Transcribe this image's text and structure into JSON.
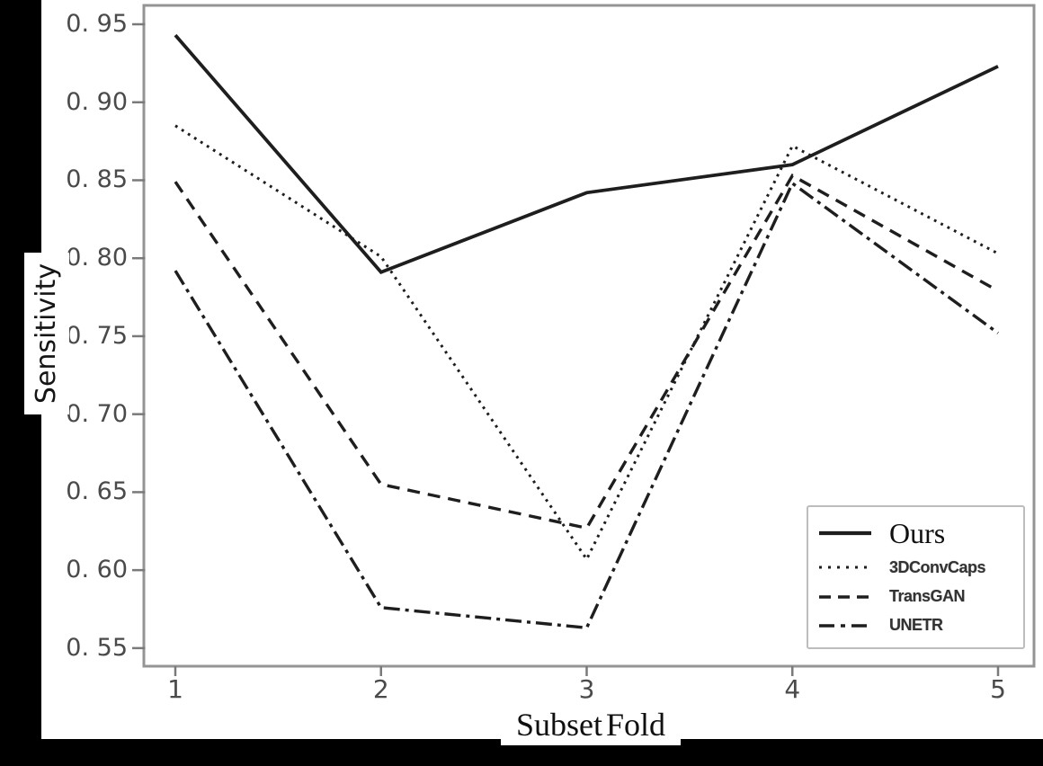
{
  "figure_background": "#ffffff",
  "scan_border_color": "#000000",
  "axis_color": "#949494",
  "tick_color": "#7a7a7a",
  "tick_label_color": "#4a4a4a",
  "line_color": "#1e1e1e",
  "legend_border_color": "#bdbdbd",
  "chart_data": {
    "type": "line",
    "title": "",
    "xlabel": "Subset Fold",
    "ylabel": "Sensitivity",
    "x": [
      1,
      2,
      3,
      4,
      5
    ],
    "x_tick_labels": [
      "1",
      "2",
      "3",
      "4",
      "5"
    ],
    "y_ticks": [
      0.55,
      0.6,
      0.65,
      0.7,
      0.75,
      0.8,
      0.85,
      0.9,
      0.95
    ],
    "y_tick_labels": [
      "0. 55",
      "0. 60",
      "0. 65",
      "0. 70",
      "0. 75",
      "0. 80",
      "0. 85",
      "0. 90",
      "0. 95"
    ],
    "xlim": [
      0.85,
      5.18
    ],
    "ylim": [
      0.538,
      0.962
    ],
    "grid": false,
    "legend_position": "lower right",
    "series": [
      {
        "name": "Ours",
        "style": "solid",
        "color": "#1e1e1e",
        "values": [
          0.943,
          0.791,
          0.842,
          0.86,
          0.923
        ]
      },
      {
        "name": "3DConvCaps",
        "style": "dotted",
        "color": "#1e1e1e",
        "values": [
          0.885,
          0.801,
          0.607,
          0.872,
          0.803
        ]
      },
      {
        "name": "TransGAN",
        "style": "dashed",
        "color": "#1e1e1e",
        "values": [
          0.849,
          0.655,
          0.627,
          0.853,
          0.779
        ]
      },
      {
        "name": "UNETR",
        "style": "dashdot",
        "color": "#1e1e1e",
        "values": [
          0.792,
          0.576,
          0.563,
          0.848,
          0.752
        ]
      }
    ]
  }
}
